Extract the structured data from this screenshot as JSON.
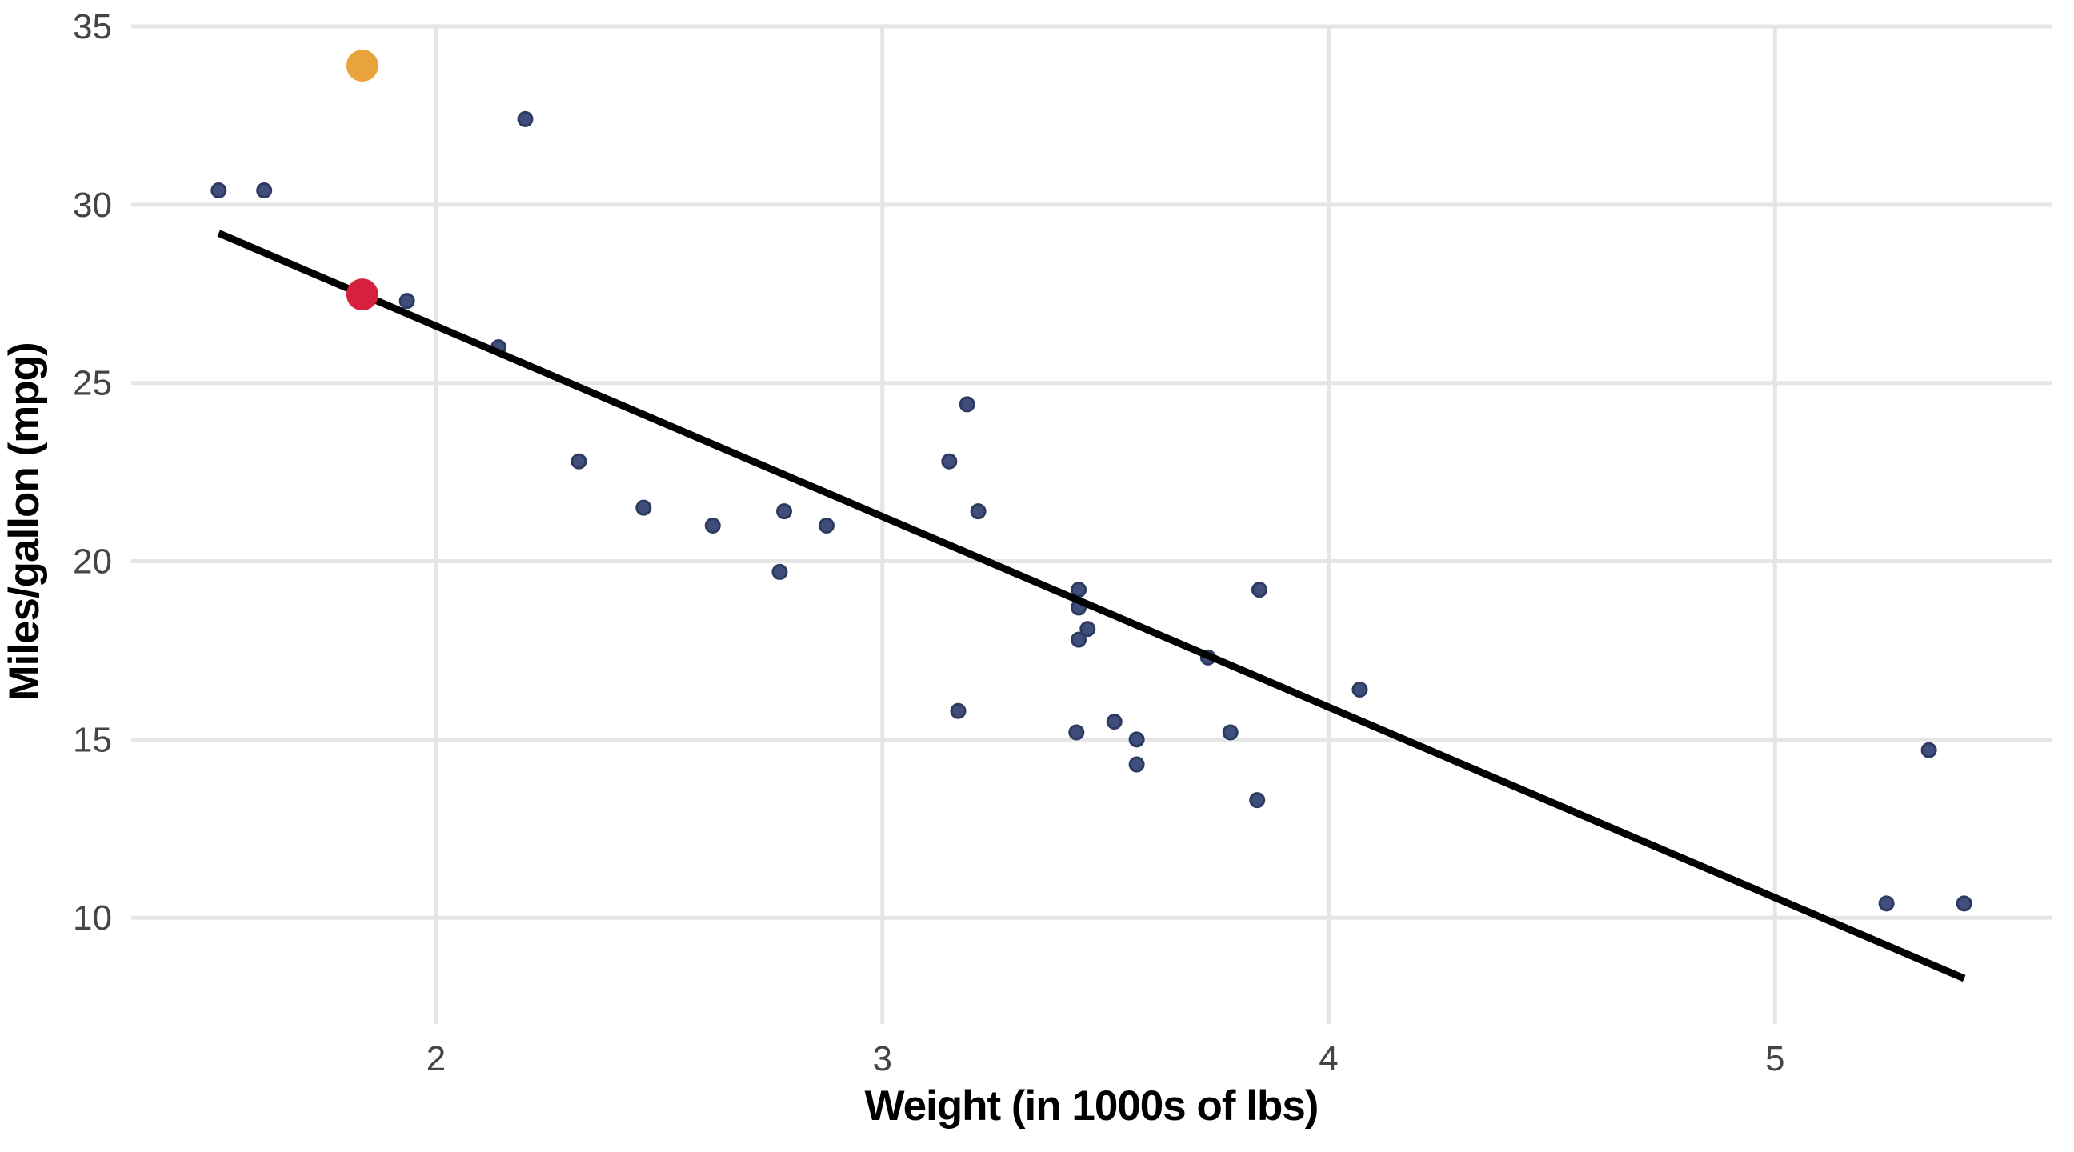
{
  "figure": {
    "background": "#ffffff"
  },
  "chart_data": {
    "type": "scatter",
    "title": "",
    "xlabel": "Weight (in 1000s of lbs)",
    "ylabel": "Miles/gallon (mpg)",
    "x_ticks": [
      2,
      3,
      4,
      5
    ],
    "y_ticks": [
      10,
      15,
      20,
      25,
      30,
      35
    ],
    "xlim": [
      1.317,
      5.62
    ],
    "ylim": [
      7.02,
      35.18
    ],
    "grid": true,
    "legend": "none",
    "points": [
      [
        2.62,
        21.0
      ],
      [
        2.875,
        21.0
      ],
      [
        2.32,
        22.8
      ],
      [
        3.215,
        21.4
      ],
      [
        3.44,
        18.7
      ],
      [
        3.46,
        18.1
      ],
      [
        3.57,
        14.3
      ],
      [
        3.19,
        24.4
      ],
      [
        3.15,
        22.8
      ],
      [
        3.44,
        19.2
      ],
      [
        3.44,
        17.8
      ],
      [
        4.07,
        16.4
      ],
      [
        3.73,
        17.3
      ],
      [
        3.78,
        15.2
      ],
      [
        5.25,
        10.4
      ],
      [
        5.424,
        10.4
      ],
      [
        5.345,
        14.7
      ],
      [
        2.2,
        32.4
      ],
      [
        1.615,
        30.4
      ],
      [
        2.465,
        21.5
      ],
      [
        3.52,
        15.5
      ],
      [
        3.435,
        15.2
      ],
      [
        3.84,
        13.3
      ],
      [
        3.845,
        19.2
      ],
      [
        1.935,
        27.3
      ],
      [
        2.14,
        26.0
      ],
      [
        1.513,
        30.4
      ],
      [
        3.17,
        15.8
      ],
      [
        2.77,
        19.7
      ],
      [
        3.57,
        15.0
      ],
      [
        2.78,
        21.4
      ]
    ],
    "highlight_points": [
      {
        "x": 1.835,
        "y": 27.48,
        "color": "#D5213E"
      },
      {
        "x": 1.835,
        "y": 33.9,
        "color": "#E8A33B"
      }
    ],
    "regression_line": {
      "intercept": 37.285,
      "slope": -5.344,
      "x_start": 1.513,
      "x_end": 5.424,
      "color": "#000000"
    },
    "colors": {
      "point_fill": "#3F4E7B",
      "point_stroke": "#2E3A62",
      "grid": "#E5E5E5",
      "tick_label": "#454545",
      "axis_title": "#000000"
    }
  }
}
